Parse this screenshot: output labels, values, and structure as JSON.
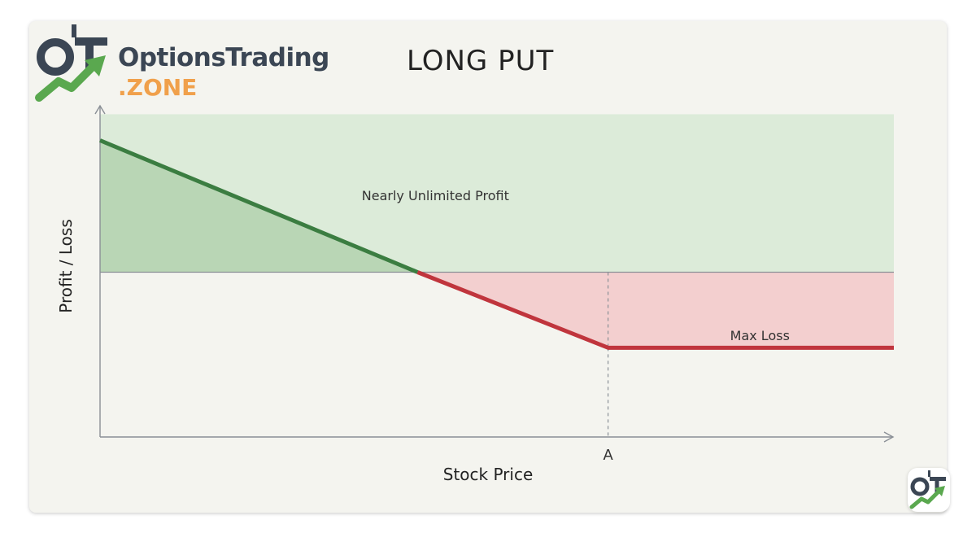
{
  "brand": {
    "name": "OptionsTrading",
    "suffix": ".ZONE",
    "logo_icon": "ot-growth-arrow-logo",
    "colors": {
      "dark": "#3b4654",
      "green": "#5aa84f",
      "orange": "#f0a04b"
    }
  },
  "chart_data": {
    "type": "line",
    "title": "LONG PUT",
    "xlabel": "Stock Price",
    "ylabel": "Profit / Loss",
    "xlim": [
      0,
      10
    ],
    "ylim": [
      -2.4,
      2.4
    ],
    "x_ticks": [
      {
        "value": 6.4,
        "label": "A"
      }
    ],
    "reference_line_x": 6.4,
    "breakeven": 4.0,
    "series": [
      {
        "x": [
          0,
          4.0
        ],
        "y": [
          1.92,
          0
        ],
        "color": "#3b7d41"
      },
      {
        "x": [
          4.0,
          6.4,
          10
        ],
        "y": [
          0,
          -1.1,
          -1.1
        ],
        "color": "#c0353d"
      }
    ],
    "zones": [
      {
        "label": "Nearly Unlimited Profit",
        "y_range": [
          0,
          2.3
        ],
        "color": "#dcebd9"
      },
      {
        "label": "Max Loss",
        "y_range": [
          -1.1,
          0
        ],
        "color": "#f3cfcf"
      }
    ],
    "annotations": [
      {
        "text": "Nearly Unlimited Profit",
        "x": 3.2,
        "y": 1.12
      },
      {
        "text": "Max Loss",
        "x": 7.8,
        "y": -0.92
      }
    ],
    "colors": {
      "profit_zone": "#dcebd9",
      "profit_fill": "#b9d6b5",
      "loss_zone": "#f3cfcf",
      "profit_line": "#3b7d41",
      "loss_line": "#c0353d",
      "axis": "#8a8f96"
    }
  }
}
